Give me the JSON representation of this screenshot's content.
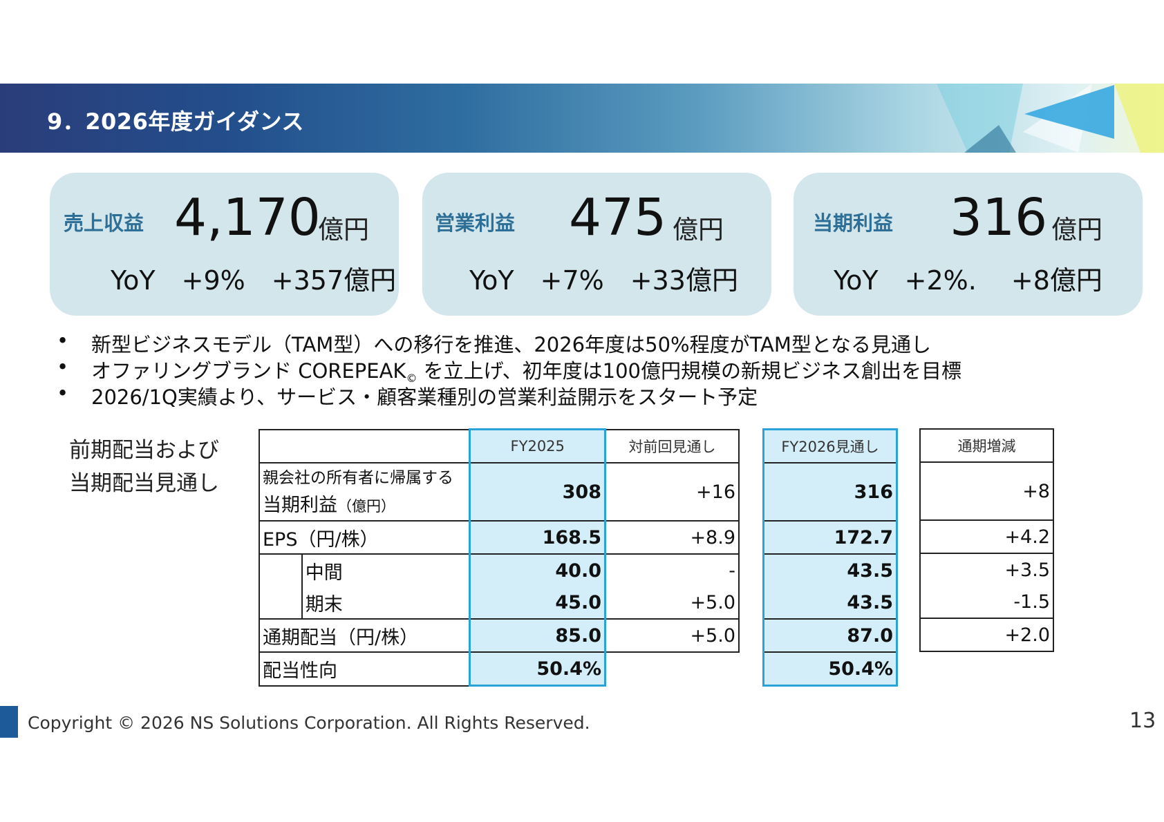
{
  "header": {
    "title": "9．2026年度ガイダンス"
  },
  "cards": [
    {
      "label": "売上収益",
      "value": "4,170",
      "unit": "億円",
      "yoy": "YoY　+9%　+357億円"
    },
    {
      "label": "営業利益",
      "value": "475",
      "unit": "億円",
      "yoy": "YoY　+7%　+33億円"
    },
    {
      "label": "当期利益",
      "value": "316",
      "unit": "億円",
      "yoy": "YoY　+2%.　 +8億円"
    }
  ],
  "bullets": [
    {
      "text": "新型ビジネスモデル（TAM型）への移行を推進、2026年度は50%程度がTAM型となる見通し"
    },
    {
      "text_a": "オファリングブランド COREPEAK",
      "sub": "©",
      "text_b": " を立上げ、初年度は100億円規模の新規ビジネス創出を目標"
    },
    {
      "text": "2026/1Q実績より、サービス・顧客業種別の営業利益開示をスタート予定"
    }
  ],
  "bullet_symbol": "•",
  "dividend": {
    "side_label_1": "前期配当および",
    "side_label_2": "当期配当見通し",
    "left_table": {
      "headers": {
        "fy2025": "FY2025",
        "vs_prev": "対前回見通し"
      },
      "rows": {
        "profit_label_1": "親会社の所有者に帰属する",
        "profit_label_2": "当期利益",
        "profit_unit": "（億円）",
        "profit_fy2025": "308",
        "profit_vs": "+16",
        "eps_label": "EPS（円/株）",
        "eps_fy2025": "168.5",
        "eps_vs": "+8.9",
        "interim_label": "中間",
        "interim_fy2025": "40.0",
        "interim_vs": "-",
        "yearend_label": "期末",
        "yearend_fy2025": "45.0",
        "yearend_vs": "+5.0",
        "annual_label": "通期配当（円/株）",
        "annual_fy2025": "85.0",
        "annual_vs": "+5.0",
        "payout_label": "配当性向",
        "payout_fy2025": "50.4%"
      }
    },
    "mid_table": {
      "header": "FY2026見通し",
      "profit": "316",
      "eps": "172.7",
      "interim": "43.5",
      "yearend": "43.5",
      "annual": "87.0",
      "payout": "50.4%"
    },
    "right_table": {
      "header": "通期増減",
      "profit": "+8",
      "eps": "+4.2",
      "interim": "+3.5",
      "yearend": "-1.5",
      "annual": "+2.0"
    }
  },
  "footer": {
    "copyright": "Copyright © 2026 NS Solutions Corporation. All Rights Reserved.",
    "page": "13"
  },
  "colors": {
    "card_bg": "#d3e6ec",
    "label": "#2d6f96",
    "highlight_border": "#2aa3d8",
    "highlight_fill": "#d4eef9"
  }
}
